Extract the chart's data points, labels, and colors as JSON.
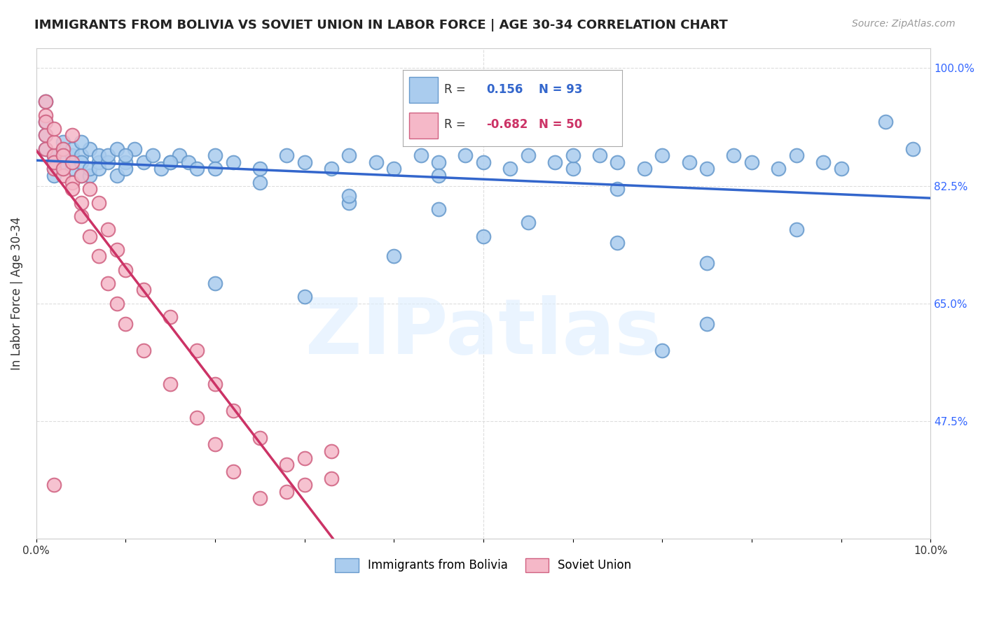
{
  "title": "IMMIGRANTS FROM BOLIVIA VS SOVIET UNION IN LABOR FORCE | AGE 30-34 CORRELATION CHART",
  "source": "Source: ZipAtlas.com",
  "ylabel": "In Labor Force | Age 30-34",
  "xlim": [
    0.0,
    0.1
  ],
  "ylim": [
    0.3,
    1.03
  ],
  "ytick_positions": [
    0.475,
    0.65,
    0.825,
    1.0
  ],
  "ytick_labels": [
    "47.5%",
    "65.0%",
    "82.5%",
    "100.0%"
  ],
  "bolivia_color": "#aaccee",
  "bolivia_edge": "#6699cc",
  "soviet_color": "#f5b8c8",
  "soviet_edge": "#d06080",
  "bolivia_R": 0.156,
  "bolivia_N": 93,
  "soviet_R": -0.682,
  "soviet_N": 50,
  "trend_blue": "#3366cc",
  "trend_pink": "#cc3366",
  "legend_bolivia": "Immigrants from Bolivia",
  "legend_soviet": "Soviet Union",
  "bolivia_x": [
    0.001,
    0.001,
    0.001,
    0.001,
    0.002,
    0.002,
    0.002,
    0.002,
    0.002,
    0.003,
    0.003,
    0.003,
    0.003,
    0.004,
    0.004,
    0.004,
    0.004,
    0.005,
    0.005,
    0.005,
    0.006,
    0.006,
    0.006,
    0.007,
    0.007,
    0.007,
    0.008,
    0.008,
    0.009,
    0.009,
    0.01,
    0.01,
    0.011,
    0.012,
    0.013,
    0.014,
    0.015,
    0.016,
    0.017,
    0.018,
    0.02,
    0.022,
    0.025,
    0.028,
    0.03,
    0.033,
    0.035,
    0.038,
    0.04,
    0.043,
    0.045,
    0.048,
    0.05,
    0.053,
    0.055,
    0.058,
    0.06,
    0.063,
    0.065,
    0.068,
    0.07,
    0.073,
    0.075,
    0.078,
    0.08,
    0.083,
    0.085,
    0.088,
    0.09,
    0.06,
    0.04,
    0.02,
    0.07,
    0.05,
    0.03,
    0.075,
    0.055,
    0.035,
    0.065,
    0.045,
    0.085,
    0.095,
    0.098,
    0.015,
    0.025,
    0.035,
    0.045,
    0.055,
    0.065,
    0.075,
    0.005,
    0.01,
    0.02
  ],
  "bolivia_y": [
    0.95,
    0.92,
    0.9,
    0.88,
    0.87,
    0.86,
    0.85,
    0.84,
    0.87,
    0.88,
    0.89,
    0.86,
    0.85,
    0.87,
    0.86,
    0.88,
    0.85,
    0.84,
    0.87,
    0.86,
    0.88,
    0.84,
    0.85,
    0.86,
    0.87,
    0.85,
    0.86,
    0.87,
    0.88,
    0.84,
    0.86,
    0.85,
    0.88,
    0.86,
    0.87,
    0.85,
    0.86,
    0.87,
    0.86,
    0.85,
    0.87,
    0.86,
    0.85,
    0.87,
    0.86,
    0.85,
    0.87,
    0.86,
    0.85,
    0.87,
    0.86,
    0.87,
    0.86,
    0.85,
    0.87,
    0.86,
    0.85,
    0.87,
    0.86,
    0.85,
    0.87,
    0.86,
    0.85,
    0.87,
    0.86,
    0.85,
    0.87,
    0.86,
    0.85,
    0.87,
    0.72,
    0.68,
    0.58,
    0.75,
    0.66,
    0.62,
    0.9,
    0.8,
    0.82,
    0.84,
    0.76,
    0.92,
    0.88,
    0.86,
    0.83,
    0.81,
    0.79,
    0.77,
    0.74,
    0.71,
    0.89,
    0.87,
    0.85
  ],
  "soviet_x": [
    0.001,
    0.001,
    0.001,
    0.001,
    0.001,
    0.002,
    0.002,
    0.002,
    0.002,
    0.002,
    0.003,
    0.003,
    0.003,
    0.003,
    0.004,
    0.004,
    0.004,
    0.004,
    0.005,
    0.005,
    0.005,
    0.006,
    0.006,
    0.007,
    0.007,
    0.008,
    0.008,
    0.009,
    0.009,
    0.01,
    0.01,
    0.012,
    0.012,
    0.015,
    0.015,
    0.018,
    0.018,
    0.02,
    0.02,
    0.022,
    0.022,
    0.025,
    0.025,
    0.028,
    0.028,
    0.03,
    0.03,
    0.033,
    0.033,
    0.002
  ],
  "soviet_y": [
    0.95,
    0.93,
    0.9,
    0.88,
    0.92,
    0.85,
    0.87,
    0.89,
    0.91,
    0.86,
    0.88,
    0.84,
    0.87,
    0.85,
    0.83,
    0.86,
    0.9,
    0.82,
    0.8,
    0.84,
    0.78,
    0.82,
    0.75,
    0.8,
    0.72,
    0.76,
    0.68,
    0.73,
    0.65,
    0.7,
    0.62,
    0.67,
    0.58,
    0.63,
    0.53,
    0.58,
    0.48,
    0.53,
    0.44,
    0.49,
    0.4,
    0.45,
    0.36,
    0.41,
    0.37,
    0.42,
    0.38,
    0.43,
    0.39,
    0.38
  ]
}
